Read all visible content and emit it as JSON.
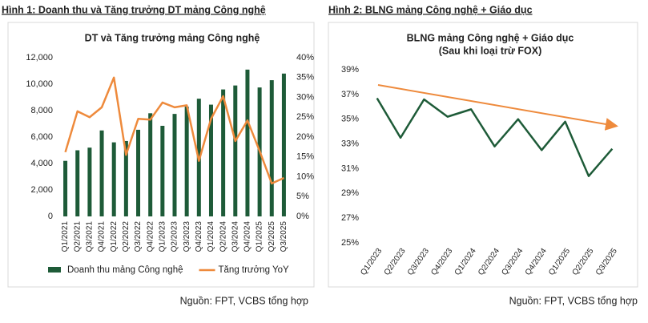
{
  "chart_data": [
    {
      "type": "combo",
      "figure_title": "Hình 1: Doanh thu và Tăng trưởng DT mảng Công nghệ",
      "title": "DT và Tăng trưởng mảng Công nghệ",
      "categories": [
        "Q1/2021",
        "Q2/2021",
        "Q3/2021",
        "Q4/2021",
        "Q1/2022",
        "Q2/2022",
        "Q3/2022",
        "Q4/2022",
        "Q1/2023",
        "Q2/2023",
        "Q3/2023",
        "Q4/2023",
        "Q1/2024",
        "Q2/2024",
        "Q3/2024",
        "Q4/2024",
        "Q1/2025",
        "Q2/2025",
        "Q3/2025"
      ],
      "series": [
        {
          "name": "Doanh thu mảng Công nghệ",
          "type": "bar",
          "color": "#1e5b38",
          "values": [
            4200,
            5000,
            5200,
            6500,
            5600,
            5700,
            6550,
            7800,
            6850,
            7750,
            8300,
            8900,
            8450,
            9600,
            9900,
            11100,
            9750,
            10300,
            10800
          ]
        },
        {
          "name": "Tăng trưởng YoY",
          "type": "line",
          "axis": "y2",
          "color": "#ee8a3c",
          "values": [
            16.2,
            26.5,
            25,
            27.5,
            35,
            15.5,
            24.6,
            24.4,
            28.7,
            27.5,
            28,
            14,
            24.6,
            30.3,
            19,
            24.2,
            16.5,
            8.3,
            9.7
          ]
        }
      ],
      "ylim": [
        0,
        12000
      ],
      "yticks": [
        0,
        {
          "value": 2000,
          "label": "2,000"
        },
        {
          "value": 4000,
          "label": "4,000"
        },
        {
          "value": 6000,
          "label": "6,000"
        },
        {
          "value": 8000,
          "label": "8,000"
        },
        {
          "value": 10000,
          "label": "10,000"
        },
        {
          "value": 12000,
          "label": "12,000"
        }
      ],
      "y2lim": [
        0,
        40
      ],
      "y2ticks": [
        {
          "value": 0,
          "label": "0%"
        },
        {
          "value": 5,
          "label": "5%"
        },
        {
          "value": 10,
          "label": "10%"
        },
        {
          "value": 15,
          "label": "15%"
        },
        {
          "value": 20,
          "label": "20%"
        },
        {
          "value": 25,
          "label": "25%"
        },
        {
          "value": 30,
          "label": "30%"
        },
        {
          "value": 35,
          "label": "35%"
        },
        {
          "value": 40,
          "label": "40%"
        }
      ],
      "grid": false,
      "legend": "bottom",
      "source": "Nguồn: FPT, VCBS tổng hợp"
    },
    {
      "type": "line",
      "figure_title": "Hình 2: BLNG mảng Công nghệ + Giáo dục",
      "title": "BLNG mảng Công nghệ + Giáo dục",
      "subtitle": "(Sau khi loại trừ FOX)",
      "categories": [
        "Q1/2023",
        "Q2/2023",
        "Q3/2023",
        "Q4/2023",
        "Q1/2024",
        "Q2/2024",
        "Q3/2024",
        "Q4/2024",
        "Q1/2025",
        "Q2/2025",
        "Q3/2025"
      ],
      "series": [
        {
          "color": "#1e5b38",
          "values": [
            36.7,
            33.5,
            36.6,
            35.2,
            35.8,
            32.8,
            35.0,
            32.5,
            34.8,
            30.4,
            32.6
          ]
        }
      ],
      "ylim": [
        25,
        39
      ],
      "yticks": [
        {
          "value": 25,
          "label": "25%"
        },
        {
          "value": 27,
          "label": "27%"
        },
        {
          "value": 29,
          "label": "29%"
        },
        {
          "value": 31,
          "label": "31%"
        },
        {
          "value": 33,
          "label": "33%"
        },
        {
          "value": 35,
          "label": "35%"
        },
        {
          "value": 37,
          "label": "37%"
        },
        {
          "value": 39,
          "label": "39%"
        }
      ],
      "grid": false,
      "source": "Nguồn: FPT, VCBS tổng hợp"
    }
  ]
}
